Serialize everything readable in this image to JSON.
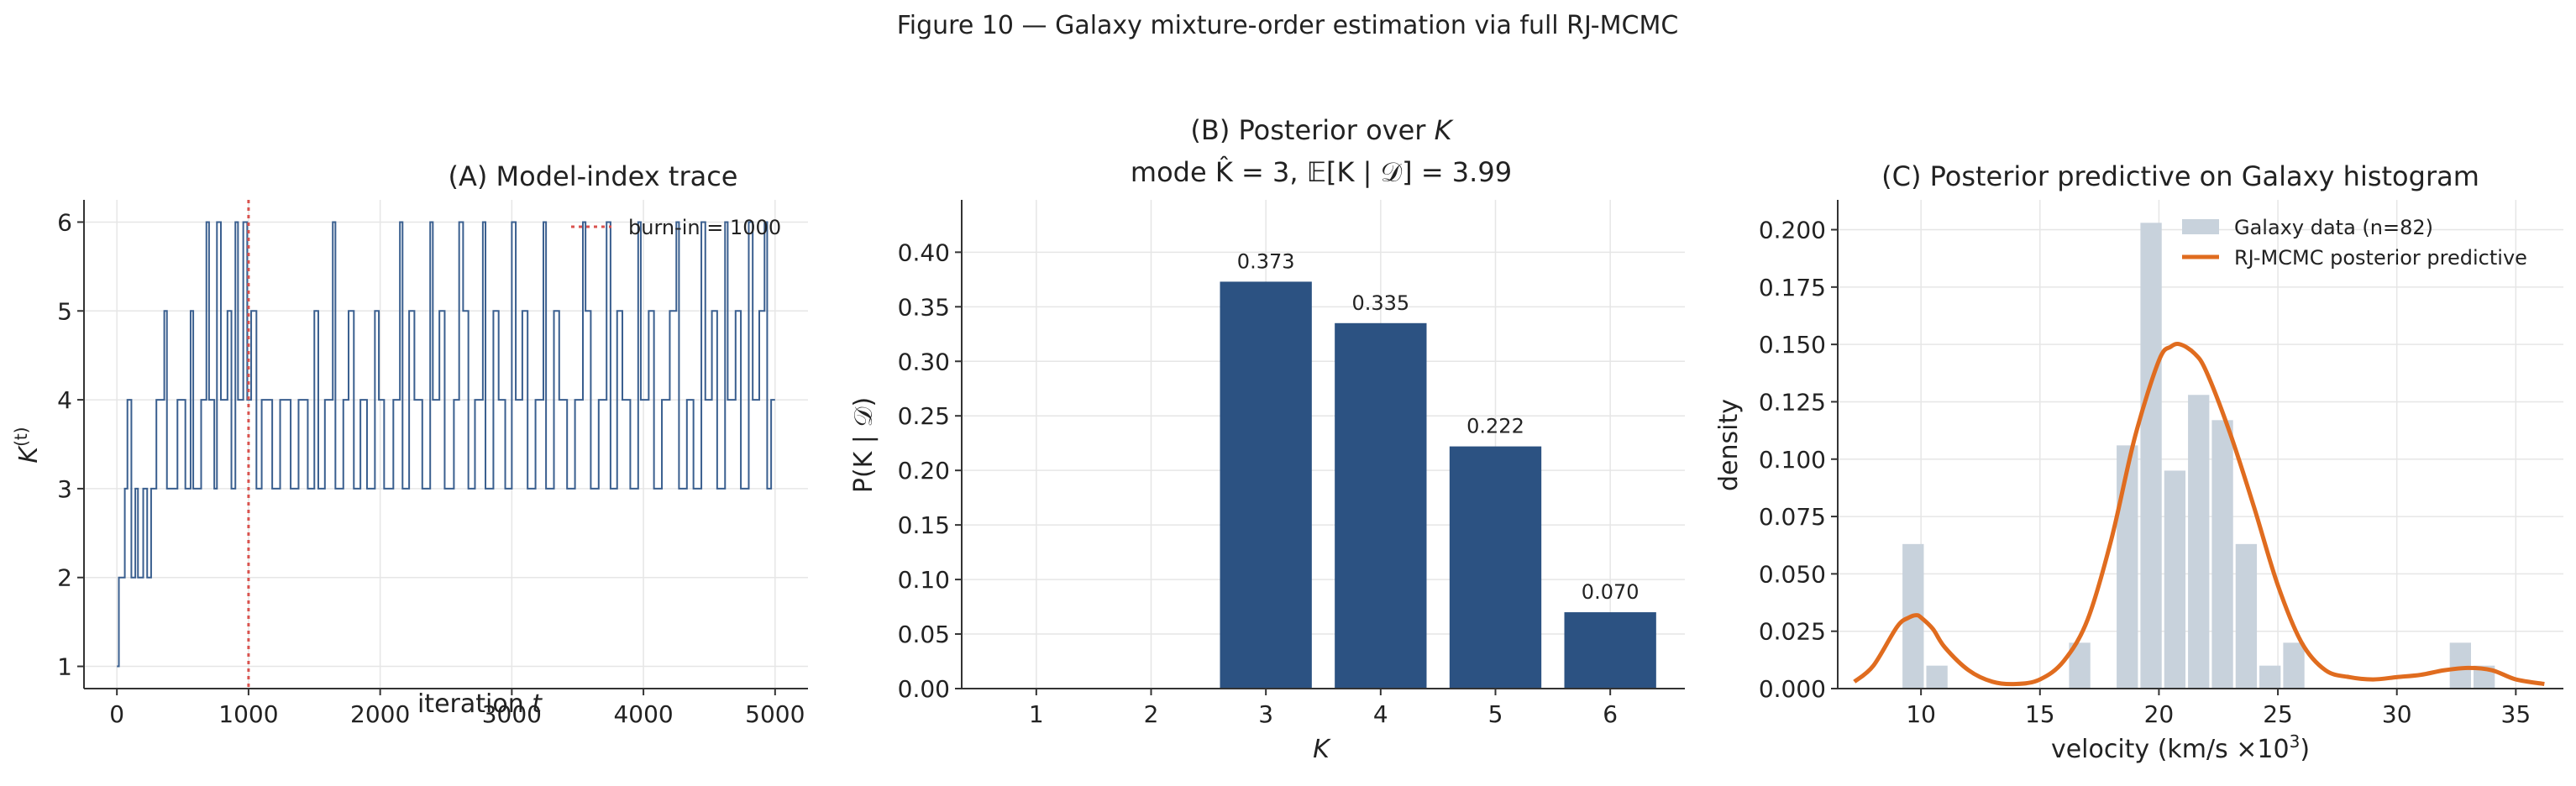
{
  "figure_title": "Figure 10 — Galaxy mixture-order estimation via full RJ-MCMC",
  "colors": {
    "trace": "#3a5f8f",
    "bar": "#2c5282",
    "burnin": "#d9534f",
    "hist": "#c8d2dc",
    "predictive": "#e06c1f",
    "grid": "#e6e6e6",
    "label": "#2d3a4f"
  },
  "chart_data": [
    {
      "type": "line",
      "title": "(A) Model-index trace",
      "xlabel": "iteration t",
      "ylabel": "K^(t)",
      "xlim": [
        -250,
        5250
      ],
      "ylim": [
        0.75,
        6.25
      ],
      "xticks": [
        0,
        1000,
        2000,
        3000,
        4000,
        5000
      ],
      "yticks": [
        1,
        2,
        3,
        4,
        5,
        6
      ],
      "grid": true,
      "legend": {
        "position": "top-right",
        "entries": [
          "burn-in = 1000"
        ]
      },
      "burn_in": 1000,
      "series": [
        {
          "segments": [
            {
              "start": 0,
              "state": 1
            },
            {
              "start": 15,
              "state": 2
            },
            {
              "start": 60,
              "state": 3
            },
            {
              "start": 80,
              "state": 4
            },
            {
              "start": 110,
              "state": 2
            },
            {
              "start": 140,
              "state": 3
            },
            {
              "start": 160,
              "state": 2
            },
            {
              "start": 200,
              "state": 3
            },
            {
              "start": 230,
              "state": 2
            },
            {
              "start": 260,
              "state": 3
            },
            {
              "start": 300,
              "state": 4
            },
            {
              "start": 360,
              "state": 5
            },
            {
              "start": 380,
              "state": 3
            },
            {
              "start": 460,
              "state": 4
            },
            {
              "start": 520,
              "state": 3
            },
            {
              "start": 560,
              "state": 5
            },
            {
              "start": 580,
              "state": 3
            },
            {
              "start": 640,
              "state": 4
            },
            {
              "start": 680,
              "state": 6
            },
            {
              "start": 700,
              "state": 4
            },
            {
              "start": 740,
              "state": 3
            },
            {
              "start": 760,
              "state": 6
            },
            {
              "start": 790,
              "state": 4
            },
            {
              "start": 840,
              "state": 5
            },
            {
              "start": 870,
              "state": 3
            },
            {
              "start": 900,
              "state": 6
            },
            {
              "start": 920,
              "state": 4
            },
            {
              "start": 960,
              "state": 6
            },
            {
              "start": 990,
              "state": 4
            },
            {
              "start": 1020,
              "state": 5
            },
            {
              "start": 1060,
              "state": 3
            },
            {
              "start": 1100,
              "state": 4
            },
            {
              "start": 1180,
              "state": 3
            },
            {
              "start": 1240,
              "state": 4
            },
            {
              "start": 1320,
              "state": 3
            },
            {
              "start": 1380,
              "state": 4
            },
            {
              "start": 1450,
              "state": 3
            },
            {
              "start": 1500,
              "state": 5
            },
            {
              "start": 1530,
              "state": 3
            },
            {
              "start": 1580,
              "state": 4
            },
            {
              "start": 1640,
              "state": 6
            },
            {
              "start": 1660,
              "state": 3
            },
            {
              "start": 1720,
              "state": 4
            },
            {
              "start": 1760,
              "state": 5
            },
            {
              "start": 1800,
              "state": 3
            },
            {
              "start": 1850,
              "state": 4
            },
            {
              "start": 1900,
              "state": 3
            },
            {
              "start": 1960,
              "state": 5
            },
            {
              "start": 1990,
              "state": 4
            },
            {
              "start": 2030,
              "state": 3
            },
            {
              "start": 2100,
              "state": 4
            },
            {
              "start": 2150,
              "state": 6
            },
            {
              "start": 2170,
              "state": 3
            },
            {
              "start": 2220,
              "state": 5
            },
            {
              "start": 2260,
              "state": 4
            },
            {
              "start": 2320,
              "state": 3
            },
            {
              "start": 2380,
              "state": 6
            },
            {
              "start": 2400,
              "state": 4
            },
            {
              "start": 2450,
              "state": 5
            },
            {
              "start": 2490,
              "state": 3
            },
            {
              "start": 2560,
              "state": 4
            },
            {
              "start": 2600,
              "state": 6
            },
            {
              "start": 2630,
              "state": 5
            },
            {
              "start": 2670,
              "state": 3
            },
            {
              "start": 2720,
              "state": 4
            },
            {
              "start": 2780,
              "state": 6
            },
            {
              "start": 2800,
              "state": 3
            },
            {
              "start": 2860,
              "state": 5
            },
            {
              "start": 2900,
              "state": 4
            },
            {
              "start": 2950,
              "state": 3
            },
            {
              "start": 3000,
              "state": 6
            },
            {
              "start": 3030,
              "state": 4
            },
            {
              "start": 3080,
              "state": 5
            },
            {
              "start": 3120,
              "state": 3
            },
            {
              "start": 3180,
              "state": 4
            },
            {
              "start": 3240,
              "state": 6
            },
            {
              "start": 3260,
              "state": 3
            },
            {
              "start": 3320,
              "state": 5
            },
            {
              "start": 3360,
              "state": 4
            },
            {
              "start": 3420,
              "state": 3
            },
            {
              "start": 3480,
              "state": 4
            },
            {
              "start": 3540,
              "state": 6
            },
            {
              "start": 3560,
              "state": 5
            },
            {
              "start": 3600,
              "state": 3
            },
            {
              "start": 3660,
              "state": 4
            },
            {
              "start": 3720,
              "state": 6
            },
            {
              "start": 3750,
              "state": 3
            },
            {
              "start": 3800,
              "state": 5
            },
            {
              "start": 3840,
              "state": 4
            },
            {
              "start": 3900,
              "state": 3
            },
            {
              "start": 3960,
              "state": 6
            },
            {
              "start": 3980,
              "state": 4
            },
            {
              "start": 4040,
              "state": 5
            },
            {
              "start": 4080,
              "state": 3
            },
            {
              "start": 4140,
              "state": 4
            },
            {
              "start": 4200,
              "state": 5
            },
            {
              "start": 4250,
              "state": 6
            },
            {
              "start": 4270,
              "state": 3
            },
            {
              "start": 4330,
              "state": 4
            },
            {
              "start": 4380,
              "state": 3
            },
            {
              "start": 4440,
              "state": 6
            },
            {
              "start": 4470,
              "state": 4
            },
            {
              "start": 4520,
              "state": 5
            },
            {
              "start": 4560,
              "state": 3
            },
            {
              "start": 4620,
              "state": 6
            },
            {
              "start": 4640,
              "state": 4
            },
            {
              "start": 4700,
              "state": 5
            },
            {
              "start": 4740,
              "state": 3
            },
            {
              "start": 4800,
              "state": 6
            },
            {
              "start": 4830,
              "state": 4
            },
            {
              "start": 4880,
              "state": 5
            },
            {
              "start": 4920,
              "state": 6
            },
            {
              "start": 4940,
              "state": 3
            },
            {
              "start": 4970,
              "state": 4
            },
            {
              "start": 5000,
              "state": 4
            }
          ]
        }
      ]
    },
    {
      "type": "bar",
      "title": "(B) Posterior over K",
      "subtitle": "mode K̂ = 3, 𝔼[K | 𝒟] = 3.99",
      "xlabel": "K",
      "ylabel": "P(K | 𝒟)",
      "categories": [
        "1",
        "2",
        "3",
        "4",
        "5",
        "6"
      ],
      "values": [
        0,
        0,
        0.373,
        0.335,
        0.222,
        0.07
      ],
      "data_labels": [
        "",
        "",
        "0.373",
        "0.335",
        "0.222",
        "0.070"
      ],
      "ylim": [
        0,
        0.448
      ],
      "yticks": [
        0.0,
        0.05,
        0.1,
        0.15,
        0.2,
        0.25,
        0.3,
        0.35,
        0.4
      ],
      "ytick_labels": [
        "0.00",
        "0.05",
        "0.10",
        "0.15",
        "0.20",
        "0.25",
        "0.30",
        "0.35",
        "0.40"
      ],
      "grid": true
    },
    {
      "type": "bar",
      "title": "(C) Posterior predictive on Galaxy histogram",
      "xlabel": "velocity (km/s ×10³)",
      "ylabel": "density",
      "xlim": [
        6.5,
        37.0
      ],
      "ylim": [
        0,
        0.213
      ],
      "xticks": [
        10,
        15,
        20,
        25,
        30,
        35
      ],
      "yticks": [
        0.0,
        0.025,
        0.05,
        0.075,
        0.1,
        0.125,
        0.15,
        0.175,
        0.2
      ],
      "ytick_labels": [
        "0.000",
        "0.025",
        "0.050",
        "0.075",
        "0.100",
        "0.125",
        "0.150",
        "0.175",
        "0.200"
      ],
      "grid": true,
      "legend": {
        "position": "top-right",
        "entries": [
          "Galaxy data (n=82)",
          "RJ-MCMC posterior predictive"
        ]
      },
      "histogram": {
        "bin_edges": [
          9.17,
          10.17,
          11.17,
          12.17,
          13.17,
          14.17,
          15.17,
          16.17,
          17.17,
          18.17,
          19.17,
          20.17,
          21.17,
          22.17,
          23.17,
          24.17,
          25.17,
          26.17,
          27.17,
          28.17,
          29.17,
          30.17,
          31.17,
          32.17,
          33.17,
          34.17
        ],
        "densities": [
          0.063,
          0.01,
          0,
          0,
          0,
          0,
          0,
          0.02,
          0,
          0.106,
          0.203,
          0.095,
          0.128,
          0.117,
          0.063,
          0.01,
          0.02,
          0,
          0,
          0,
          0,
          0,
          0,
          0.02,
          0.01
        ]
      },
      "series": [
        {
          "name": "RJ-MCMC posterior predictive",
          "x": [
            7.2,
            8,
            9,
            9.5,
            9.8,
            10,
            10.5,
            11,
            12,
            13,
            14,
            15,
            16,
            17,
            18,
            19,
            20,
            20.5,
            20.9,
            21.5,
            22,
            23,
            24,
            25,
            26,
            27,
            28,
            29,
            30,
            31,
            32,
            33,
            34,
            35,
            36.2
          ],
          "y": [
            0.003,
            0.01,
            0.027,
            0.031,
            0.032,
            0.031,
            0.026,
            0.018,
            0.008,
            0.003,
            0.002,
            0.004,
            0.012,
            0.03,
            0.065,
            0.11,
            0.143,
            0.149,
            0.15,
            0.146,
            0.138,
            0.111,
            0.079,
            0.045,
            0.02,
            0.008,
            0.005,
            0.004,
            0.005,
            0.006,
            0.008,
            0.009,
            0.008,
            0.004,
            0.002
          ]
        }
      ]
    }
  ]
}
